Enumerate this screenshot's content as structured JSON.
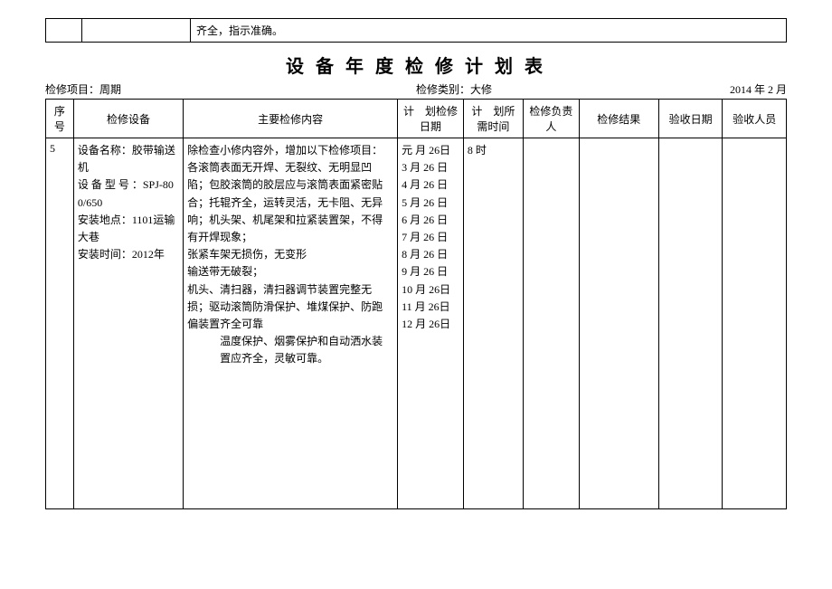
{
  "fragment": {
    "cell3": "齐全，指示准确。"
  },
  "title": "设 备 年 度 检 修 计 划 表",
  "meta": {
    "left": "检修项目：周期",
    "mid": "检修类别：大修",
    "right": "2014 年 2 月"
  },
  "headers": {
    "seq": "序号",
    "dev": "检修设备",
    "content": "主要检修内容",
    "date": "计　划检修日期",
    "dur": "计　划所需时间",
    "resp": "检修负责人",
    "result": "检修结果",
    "accdate": "验收日期",
    "accperson": "验收人员"
  },
  "row": {
    "seq": "5",
    "dev": "设备名称：胶带输送机\n设 备 型 号 ：SPJ-800/650\n安装地点：1101运输大巷\n安装时间：2012年",
    "content_main": "除检查小修内容外，增加以下检修项目：各滚筒表面无开焊、无裂纹、无明显凹陷；包胶滚筒的胶层应与滚筒表面紧密贴合；托辊齐全，运转灵活，无卡阻、无异响；机头架、机尾架和拉紧装置架，不得有开焊现象；\n张紧车架无损伤，无变形\n输送带无破裂；\n机头、清扫器，清扫器调节装置完整无损；驱动滚筒防滑保护、堆煤保护、防跑偏装置齐全可靠",
    "content_indent": "温度保护、烟雾保护和自动洒水装置应齐全，灵敏可靠。",
    "dates": "元 月 26日\n3 月 26 日\n4 月 26 日\n5 月 26 日\n6 月 26 日\n7 月 26 日\n8 月 26 日\n9 月 26 日\n10 月 26日\n11 月 26日\n12 月 26日",
    "dur": "8 时",
    "resp": "",
    "result": "",
    "accdate": "",
    "accperson": ""
  }
}
